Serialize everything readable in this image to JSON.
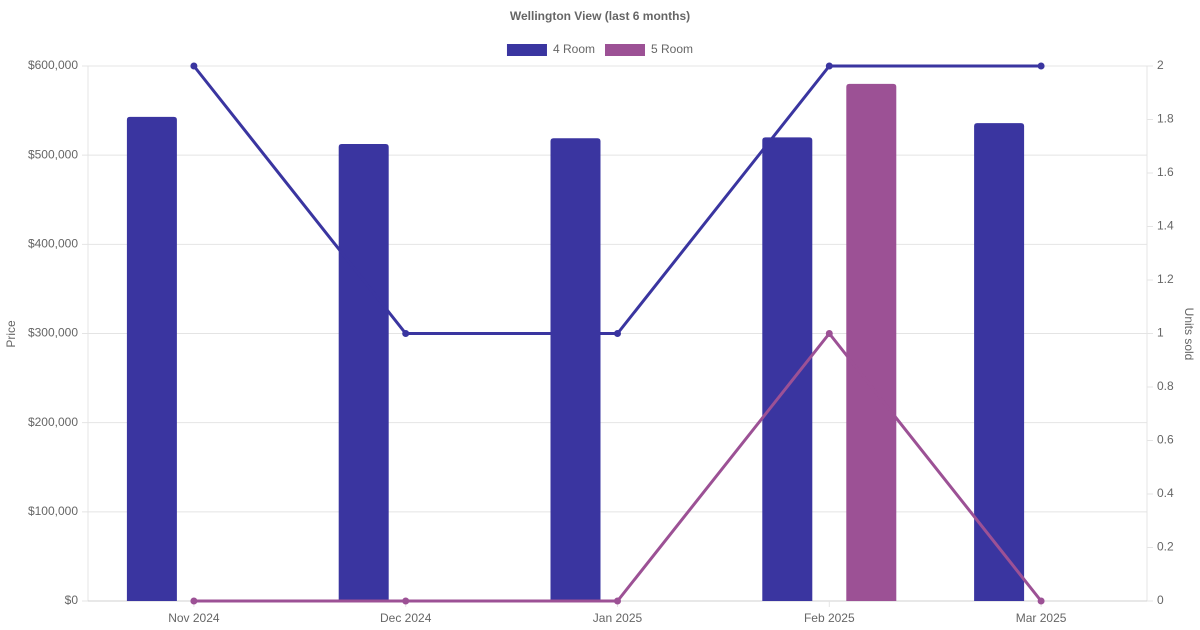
{
  "chart_data": {
    "type": "bar",
    "title": "Wellington View (last 6 months)",
    "y_label": "Price",
    "y2_label": "Units sold",
    "categories": [
      "Nov 2024",
      "Dec 2024",
      "Jan 2025",
      "Feb 2025",
      "Mar 2025"
    ],
    "series": [
      {
        "name": "4 Room",
        "color": "#3a35a0",
        "values": [
          543000,
          512500,
          519000,
          520000,
          536000
        ],
        "units": [
          2,
          1,
          1,
          2,
          2
        ]
      },
      {
        "name": "5 Room",
        "color": "#9c5195",
        "values": [
          null,
          null,
          null,
          580000,
          null
        ],
        "units": [
          0,
          0,
          0,
          1,
          0
        ]
      }
    ],
    "ylim": [
      0,
      600000
    ],
    "yticks": [
      {
        "value": 0,
        "label": "$0"
      },
      {
        "value": 100000,
        "label": "$100,000"
      },
      {
        "value": 200000,
        "label": "$200,000"
      },
      {
        "value": 300000,
        "label": "$300,000"
      },
      {
        "value": 400000,
        "label": "$400,000"
      },
      {
        "value": 500000,
        "label": "$500,000"
      },
      {
        "value": 600000,
        "label": "$600,000"
      }
    ],
    "y2lim": [
      0,
      2
    ],
    "y2ticks": [
      0,
      0.2,
      0.4,
      0.6,
      0.8,
      1,
      1.2,
      1.4,
      1.6,
      1.8,
      2
    ],
    "grid": true,
    "legend": "top"
  }
}
